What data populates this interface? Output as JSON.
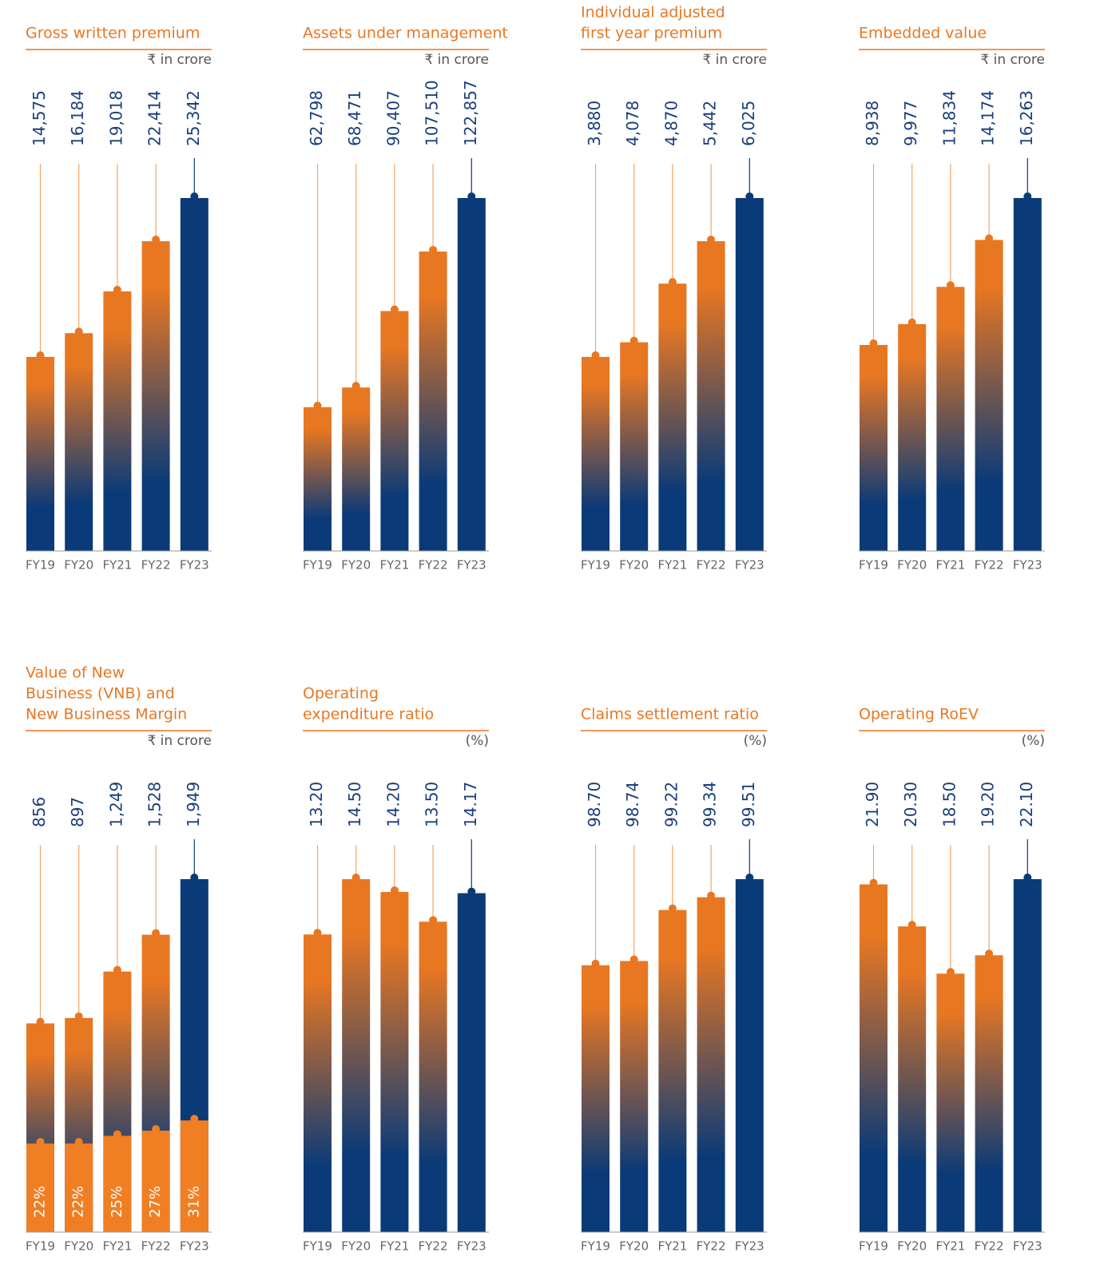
{
  "chart_data": [
    {
      "type": "bar",
      "title": [
        "Gross written premium"
      ],
      "unit": "₹ in crore",
      "categories": [
        "FY19",
        "FY20",
        "FY21",
        "FY22",
        "FY23"
      ],
      "values": [
        14575,
        16184,
        19018,
        22414,
        25342
      ],
      "value_labels": [
        "14,575",
        "16,184",
        "19,018",
        "22,414",
        "25,342"
      ],
      "ylim": [
        1426,
        25342
      ],
      "colors": {
        "bar": "#e87722",
        "latest": "#0a3a78"
      }
    },
    {
      "type": "bar",
      "title": [
        "Assets under management"
      ],
      "unit": "₹ in crore",
      "categories": [
        "FY19",
        "FY20",
        "FY21",
        "FY22",
        "FY23"
      ],
      "values": [
        62798,
        68471,
        90407,
        107510,
        122857
      ],
      "value_labels": [
        "62,798",
        "68,471",
        "90,407",
        "107,510",
        "122,857"
      ],
      "ylim": [
        21533,
        122857
      ],
      "colors": {
        "bar": "#e87722",
        "latest": "#0a3a78"
      }
    },
    {
      "type": "bar",
      "title": [
        "Individual adjusted",
        "first year premium"
      ],
      "unit": "₹ in crore",
      "categories": [
        "FY19",
        "FY20",
        "FY21",
        "FY22",
        "FY23"
      ],
      "values": [
        3880,
        4078,
        4870,
        5442,
        6025
      ],
      "value_labels": [
        "3,880",
        "4,078",
        "4,870",
        "5,442",
        "6,025"
      ],
      "ylim": [
        1261,
        6025
      ],
      "colors": {
        "bar": "#e87722",
        "latest": "#0a3a78"
      }
    },
    {
      "type": "bar",
      "title": [
        "Embedded value"
      ],
      "unit": "₹ in crore",
      "categories": [
        "FY19",
        "FY20",
        "FY21",
        "FY22",
        "FY23"
      ],
      "values": [
        8938,
        9977,
        11834,
        14174,
        16263
      ],
      "value_labels": [
        "8,938",
        "9,977",
        "11,834",
        "14,174",
        "16,263"
      ],
      "ylim": [
        -1333,
        16263
      ],
      "colors": {
        "bar": "#e87722",
        "latest": "#0a3a78"
      }
    },
    {
      "type": "bar",
      "title": [
        "Value of New",
        "Business (VNB) and",
        "New Business Margin"
      ],
      "unit": "₹ in crore",
      "categories": [
        "FY19",
        "FY20",
        "FY21",
        "FY22",
        "FY23"
      ],
      "values": [
        856,
        897,
        1249,
        1528,
        1949
      ],
      "value_labels": [
        "856",
        "897",
        "1,249",
        "1,528",
        "1,949"
      ],
      "ylim": [
        -726,
        1949
      ],
      "margin": {
        "values": [
          22,
          22,
          25,
          27,
          31
        ],
        "value_labels": [
          "22%",
          "22%",
          "25%",
          "27%",
          "31%"
        ],
        "color": "#f07f24"
      },
      "y2lim": [
        -12.5,
        125
      ],
      "colors": {
        "bar": "#e87722",
        "latest": "#0a3a78"
      }
    },
    {
      "type": "bar",
      "title": [
        "Operating",
        "expenditure ratio"
      ],
      "unit": "(%)",
      "categories": [
        "FY19",
        "FY20",
        "FY21",
        "FY22",
        "FY23"
      ],
      "values": [
        13.2,
        14.5,
        14.2,
        13.5,
        14.17
      ],
      "value_labels": [
        "13.20",
        "14.50",
        "14.20",
        "13.50",
        "14.17"
      ],
      "ylim": [
        6.2,
        14.5
      ],
      "colors": {
        "bar": "#e87722",
        "latest": "#0a3a78"
      }
    },
    {
      "type": "bar",
      "title": [
        "Claims settlement ratio"
      ],
      "unit": "(%)",
      "categories": [
        "FY19",
        "FY20",
        "FY21",
        "FY22",
        "FY23"
      ],
      "values": [
        98.7,
        98.74,
        99.22,
        99.34,
        99.51
      ],
      "value_labels": [
        "98.70",
        "98.74",
        "99.22",
        "99.34",
        "99.51"
      ],
      "ylim": [
        96.19,
        99.51
      ],
      "colors": {
        "bar": "#e87722",
        "latest": "#0a3a78"
      }
    },
    {
      "type": "bar",
      "title": [
        "Operating RoEV"
      ],
      "unit": "(%)",
      "categories": [
        "FY19",
        "FY20",
        "FY21",
        "FY22",
        "FY23"
      ],
      "values": [
        21.9,
        20.3,
        18.5,
        19.2,
        22.1
      ],
      "value_labels": [
        "21.90",
        "20.30",
        "18.50",
        "19.20",
        "22.10"
      ],
      "ylim": [
        8.65,
        22.1
      ],
      "colors": {
        "bar": "#e87722",
        "latest": "#0a3a78"
      }
    }
  ]
}
